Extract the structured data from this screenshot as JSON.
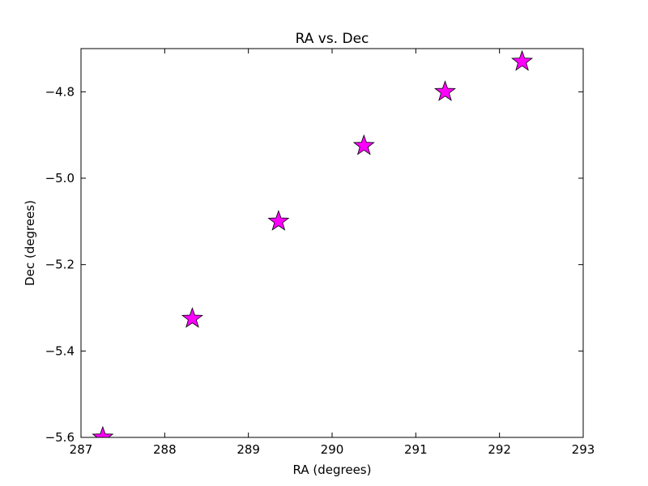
{
  "chart_data": {
    "type": "scatter",
    "title": "RA vs. Dec",
    "xlabel": "RA (degrees)",
    "ylabel": "Dec (degrees)",
    "xlim": [
      287,
      293
    ],
    "ylim": [
      -5.6,
      -4.7
    ],
    "xticks": [
      287,
      288,
      289,
      290,
      291,
      292,
      293
    ],
    "xtick_labels": [
      "287",
      "288",
      "289",
      "290",
      "291",
      "292",
      "293"
    ],
    "yticks": [
      -5.6,
      -5.4,
      -5.2,
      -5.0,
      -4.8
    ],
    "ytick_labels": [
      "−5.6",
      "−5.4",
      "−5.2",
      "−5.0",
      "−4.8"
    ],
    "grid": false,
    "marker": "star",
    "marker_color": "#ff00ff",
    "marker_edge_color": "#000000",
    "series": [
      {
        "x": [
          287.26,
          288.33,
          289.36,
          290.38,
          291.35,
          292.27
        ],
        "y": [
          -5.6,
          -5.325,
          -5.1,
          -4.925,
          -4.8,
          -4.73
        ]
      }
    ]
  }
}
